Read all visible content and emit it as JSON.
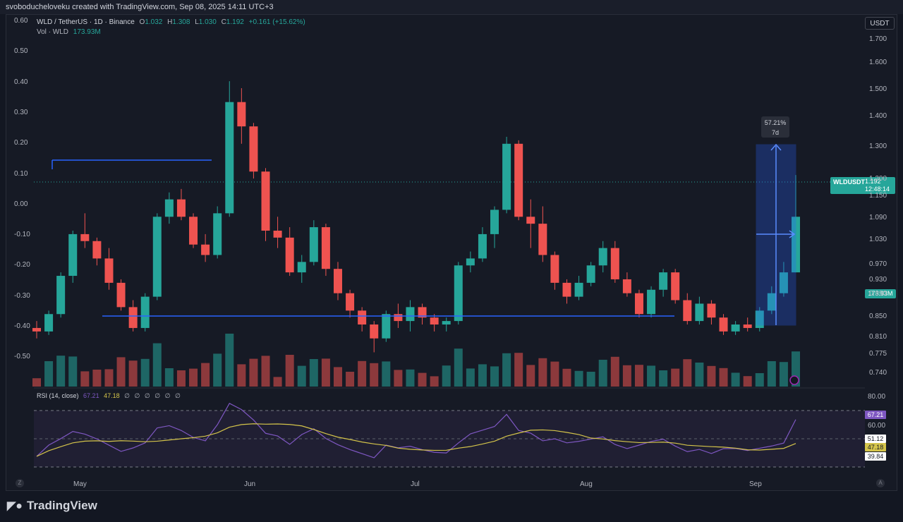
{
  "header": {
    "caption": "svoboducheloveku created with TradingView.com, Sep 08, 2025 14:11 UTC+3"
  },
  "symbol": {
    "name": "WLD / TetherUS · 1D · Binance",
    "open_label": "O",
    "open": "1.032",
    "high_label": "H",
    "high": "1.308",
    "low_label": "L",
    "low": "1.030",
    "close_label": "C",
    "close": "1.192",
    "change": "+0.161 (+15.62%)"
  },
  "volume": {
    "label": "Vol · WLD",
    "value": "173.93M"
  },
  "currency_button": "USDT",
  "price_axis": [
    "1.700",
    "1.600",
    "1.500",
    "1.400",
    "1.300",
    "1.200",
    "1.150",
    "1.090",
    "1.030",
    "0.970",
    "0.930",
    "0.890",
    "0.850",
    "0.810",
    "0.775",
    "0.740"
  ],
  "left_axis": [
    "0.60",
    "0.50",
    "0.40",
    "0.30",
    "0.20",
    "0.10",
    "0.00",
    "-0.10",
    "-0.20",
    "-0.30",
    "-0.40",
    "-0.50"
  ],
  "time_axis": [
    "May",
    "Jun",
    "Jul",
    "Aug",
    "Sep"
  ],
  "last_price_tag": {
    "symbol": "WLDUSDT",
    "price": "1.192",
    "countdown": "12:48:14"
  },
  "volume_tag": "173.93M",
  "measure": {
    "percent": "57.21%",
    "duration": "7d"
  },
  "rsi": {
    "label": "RSI (14, close)",
    "value": "67.21",
    "ma": "47.18",
    "placeholders": [
      "∅",
      "∅",
      "∅",
      "∅",
      "∅",
      "∅"
    ],
    "axis": [
      "80.00",
      "60.00"
    ],
    "tags": {
      "rsi": "67.21",
      "upper": "51.12",
      "ma": "47.18",
      "lower": "39.84"
    }
  },
  "corner_buttons": {
    "left": "Z",
    "right": "A"
  },
  "brand": "TradingView",
  "colors": {
    "background": "#131722",
    "up": "#26a69a",
    "down": "#ef5350",
    "drawing_line": "#2962ff",
    "rsi_line": "#7e57c2",
    "rsi_ma": "#d4c44a"
  },
  "chart_data": {
    "type": "candlestick",
    "series": [
      {
        "name": "WLD / TetherUS",
        "ohlc_sample": [
          [
            0.87,
            0.89,
            0.84,
            0.86
          ],
          [
            0.86,
            0.92,
            0.85,
            0.91
          ],
          [
            0.91,
            1.03,
            0.9,
            1.02
          ],
          [
            1.02,
            1.15,
            1.0,
            1.14
          ],
          [
            1.14,
            1.2,
            1.1,
            1.12
          ],
          [
            1.12,
            1.13,
            1.05,
            1.07
          ],
          [
            1.07,
            1.1,
            0.98,
            1.0
          ],
          [
            1.0,
            1.01,
            0.92,
            0.93
          ],
          [
            0.93,
            0.95,
            0.86,
            0.87
          ],
          [
            0.87,
            0.97,
            0.86,
            0.96
          ],
          [
            0.96,
            1.2,
            0.95,
            1.19
          ],
          [
            1.19,
            1.26,
            1.17,
            1.24
          ],
          [
            1.24,
            1.27,
            1.18,
            1.19
          ],
          [
            1.19,
            1.2,
            1.1,
            1.11
          ],
          [
            1.11,
            1.14,
            1.06,
            1.08
          ],
          [
            1.08,
            1.22,
            1.07,
            1.2
          ],
          [
            1.2,
            1.58,
            1.19,
            1.52
          ],
          [
            1.52,
            1.56,
            1.4,
            1.45
          ],
          [
            1.45,
            1.46,
            1.3,
            1.32
          ],
          [
            1.32,
            1.33,
            1.12,
            1.15
          ],
          [
            1.15,
            1.19,
            1.1,
            1.13
          ],
          [
            1.13,
            1.16,
            1.02,
            1.03
          ],
          [
            1.03,
            1.08,
            1.0,
            1.06
          ],
          [
            1.06,
            1.18,
            1.05,
            1.16
          ],
          [
            1.16,
            1.17,
            1.02,
            1.04
          ],
          [
            1.04,
            1.06,
            0.95,
            0.97
          ],
          [
            0.97,
            0.98,
            0.9,
            0.92
          ],
          [
            0.92,
            0.93,
            0.86,
            0.88
          ],
          [
            0.88,
            0.89,
            0.8,
            0.84
          ],
          [
            0.84,
            0.92,
            0.83,
            0.91
          ],
          [
            0.91,
            0.94,
            0.87,
            0.89
          ],
          [
            0.89,
            0.95,
            0.86,
            0.93
          ],
          [
            0.93,
            0.94,
            0.88,
            0.9
          ],
          [
            0.9,
            0.91,
            0.86,
            0.88
          ],
          [
            0.88,
            0.9,
            0.86,
            0.89
          ],
          [
            0.89,
            1.06,
            0.88,
            1.05
          ],
          [
            1.05,
            1.09,
            1.03,
            1.07
          ],
          [
            1.07,
            1.16,
            1.06,
            1.14
          ],
          [
            1.14,
            1.22,
            1.1,
            1.21
          ],
          [
            1.21,
            1.42,
            1.2,
            1.4
          ],
          [
            1.4,
            1.41,
            1.18,
            1.19
          ],
          [
            1.19,
            1.24,
            1.1,
            1.17
          ],
          [
            1.17,
            1.22,
            1.06,
            1.08
          ],
          [
            1.08,
            1.09,
            0.98,
            1.0
          ],
          [
            1.0,
            1.01,
            0.94,
            0.96
          ],
          [
            0.96,
            1.02,
            0.95,
            1.0
          ],
          [
            1.0,
            1.06,
            0.99,
            1.05
          ],
          [
            1.05,
            1.12,
            1.03,
            1.1
          ],
          [
            1.1,
            1.12,
            1.0,
            1.01
          ],
          [
            1.01,
            1.03,
            0.96,
            0.97
          ],
          [
            0.97,
            0.98,
            0.9,
            0.91
          ],
          [
            0.91,
            0.99,
            0.9,
            0.98
          ],
          [
            0.98,
            1.04,
            0.96,
            1.03
          ],
          [
            1.03,
            1.04,
            0.94,
            0.95
          ],
          [
            0.95,
            0.97,
            0.88,
            0.89
          ],
          [
            0.89,
            0.96,
            0.88,
            0.94
          ],
          [
            0.94,
            0.95,
            0.88,
            0.9
          ],
          [
            0.9,
            0.91,
            0.85,
            0.86
          ],
          [
            0.86,
            0.89,
            0.85,
            0.88
          ],
          [
            0.88,
            0.9,
            0.86,
            0.87
          ],
          [
            0.87,
            0.93,
            0.86,
            0.92
          ],
          [
            0.92,
            0.99,
            0.91,
            0.97
          ],
          [
            0.97,
            1.06,
            0.96,
            1.03
          ],
          [
            1.03,
            1.31,
            1.03,
            1.19
          ]
        ]
      }
    ],
    "value_axis_right": {
      "min": 0.74,
      "max": 1.7
    },
    "annotations": [
      "57.21%",
      "7d"
    ],
    "rsi_axis": {
      "min": 30,
      "max": 85
    },
    "volume_last": "173.93M"
  }
}
